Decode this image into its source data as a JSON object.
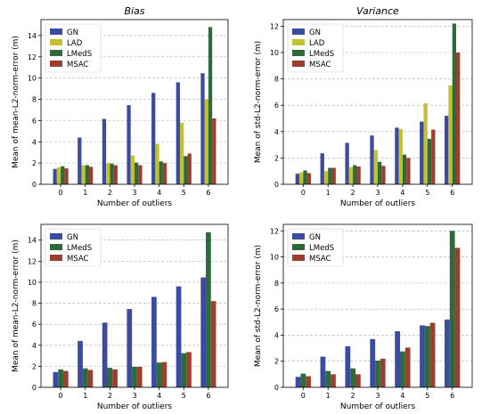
{
  "colors": {
    "GN": "#3b4ba0",
    "LAD": "#c2c12e",
    "LMedS": "#2e6a3a",
    "MSAC": "#9c3f2e"
  },
  "chart_data": [
    {
      "type": "bar",
      "title": "Bias",
      "xlabel": "Number of outliers",
      "ylabel": "Mean of mean-L2-norm-error (m)",
      "categories": [
        "0",
        "1",
        "2",
        "3",
        "4",
        "5",
        "6"
      ],
      "ylim": [
        0,
        15.5
      ],
      "yticks": [
        0,
        2,
        4,
        6,
        8,
        10,
        12,
        14
      ],
      "grid": true,
      "legend": "top-left",
      "series": [
        {
          "name": "GN",
          "values": [
            1.45,
            4.4,
            6.15,
            7.45,
            8.6,
            9.6,
            10.45
          ]
        },
        {
          "name": "LAD",
          "values": [
            1.6,
            1.8,
            2.0,
            2.7,
            3.8,
            5.8,
            8.0
          ]
        },
        {
          "name": "LMedS",
          "values": [
            1.7,
            1.8,
            1.95,
            2.05,
            2.15,
            2.65,
            14.8
          ]
        },
        {
          "name": "MSAC",
          "values": [
            1.5,
            1.65,
            1.8,
            1.8,
            2.0,
            2.9,
            6.2
          ]
        }
      ]
    },
    {
      "type": "bar",
      "title": "Variance",
      "xlabel": "Number of outliers",
      "ylabel": "Mean of std-L2-norm-error (m)",
      "categories": [
        "0",
        "1",
        "2",
        "3",
        "4",
        "5",
        "6"
      ],
      "ylim": [
        0,
        12.5
      ],
      "yticks": [
        0,
        2,
        4,
        6,
        8,
        10,
        12
      ],
      "grid": true,
      "legend": "top-left",
      "series": [
        {
          "name": "GN",
          "values": [
            0.8,
            2.35,
            3.15,
            3.7,
            4.3,
            4.75,
            5.2
          ]
        },
        {
          "name": "LAD",
          "values": [
            0.9,
            1.0,
            1.3,
            2.6,
            4.2,
            6.15,
            7.5
          ]
        },
        {
          "name": "LMedS",
          "values": [
            1.05,
            1.25,
            1.45,
            1.7,
            2.25,
            3.45,
            12.2
          ]
        },
        {
          "name": "MSAC",
          "values": [
            0.85,
            1.25,
            1.35,
            1.4,
            2.0,
            4.15,
            10.0
          ]
        }
      ]
    },
    {
      "type": "bar",
      "title": "",
      "xlabel": "Number of outliers",
      "ylabel": "Mean of mean-L2-norm-error (m)",
      "categories": [
        "0",
        "1",
        "2",
        "3",
        "4",
        "5",
        "6"
      ],
      "ylim": [
        0,
        15.5
      ],
      "yticks": [
        0,
        2,
        4,
        6,
        8,
        10,
        12,
        14
      ],
      "grid": true,
      "legend": "top-left",
      "series": [
        {
          "name": "GN",
          "values": [
            1.45,
            4.4,
            6.15,
            7.45,
            8.6,
            9.6,
            10.45
          ]
        },
        {
          "name": "LMedS",
          "values": [
            1.7,
            1.8,
            1.85,
            1.95,
            2.35,
            3.25,
            14.75
          ]
        },
        {
          "name": "MSAC",
          "values": [
            1.55,
            1.65,
            1.7,
            1.95,
            2.4,
            3.35,
            8.2
          ]
        }
      ]
    },
    {
      "type": "bar",
      "title": "",
      "xlabel": "Number of outliers",
      "ylabel": "Mean of std-L2-norm-error (m)",
      "categories": [
        "0",
        "1",
        "2",
        "3",
        "4",
        "5",
        "6"
      ],
      "ylim": [
        0,
        12.5
      ],
      "yticks": [
        0,
        2,
        4,
        6,
        8,
        10,
        12
      ],
      "grid": true,
      "legend": "top-left",
      "series": [
        {
          "name": "GN",
          "values": [
            0.8,
            2.35,
            3.15,
            3.7,
            4.3,
            4.75,
            5.2
          ]
        },
        {
          "name": "LMedS",
          "values": [
            1.05,
            1.25,
            1.45,
            2.05,
            2.75,
            4.7,
            12.0
          ]
        },
        {
          "name": "MSAC",
          "values": [
            0.85,
            1.0,
            1.0,
            2.2,
            3.05,
            4.95,
            10.7
          ]
        }
      ]
    }
  ]
}
